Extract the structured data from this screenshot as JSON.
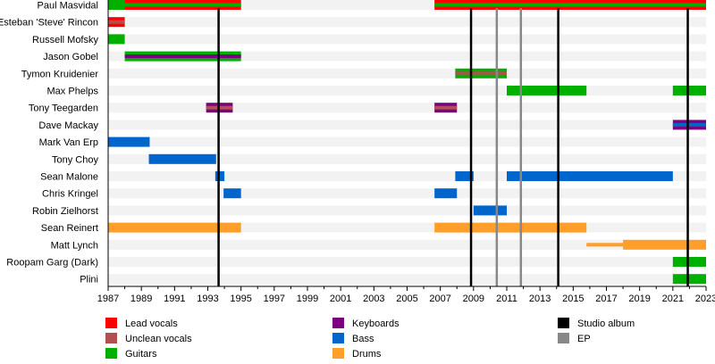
{
  "chart_data": {
    "type": "timeline",
    "title": "",
    "xlabel": "",
    "ylabel": "",
    "xlim": [
      1987,
      2023
    ],
    "x_ticks": [
      1987,
      1989,
      1991,
      1993,
      1995,
      1997,
      1999,
      2001,
      2003,
      2005,
      2007,
      2009,
      2011,
      2013,
      2015,
      2017,
      2019,
      2021,
      2023
    ],
    "minor_tick_step": 1,
    "grid": false,
    "row_striping": true,
    "legend_position": "bottom",
    "roles": {
      "lead_vocals": {
        "label": "Lead vocals",
        "color": "#ff0000"
      },
      "unclean_vocals": {
        "label": "Unclean vocals",
        "color": "#b25050"
      },
      "guitars": {
        "label": "Guitars",
        "color": "#00b000"
      },
      "keyboards": {
        "label": "Keyboards",
        "color": "#7a0080"
      },
      "bass": {
        "label": "Bass",
        "color": "#0066cc"
      },
      "drums": {
        "label": "Drums",
        "color": "#ff9e2a"
      },
      "studio_album": {
        "label": "Studio album",
        "color": "#000000"
      },
      "ep": {
        "label": "EP",
        "color": "#888888"
      }
    },
    "legend": [
      {
        "key": "lead_vocals",
        "label": "Lead vocals",
        "color": "#ff0000"
      },
      {
        "key": "unclean_vocals",
        "label": "Unclean vocals",
        "color": "#b25050"
      },
      {
        "key": "guitars",
        "label": "Guitars",
        "color": "#00b000"
      },
      {
        "key": "keyboards",
        "label": "Keyboards",
        "color": "#7a0080"
      },
      {
        "key": "bass",
        "label": "Bass",
        "color": "#0066cc"
      },
      {
        "key": "drums",
        "label": "Drums",
        "color": "#ff9e2a"
      },
      {
        "key": "studio_album",
        "label": "Studio album",
        "color": "#000000"
      },
      {
        "key": "ep",
        "label": "EP",
        "color": "#888888"
      }
    ],
    "releases": [
      {
        "type": "studio_album",
        "year": 1993.65
      },
      {
        "type": "studio_album",
        "year": 2008.85
      },
      {
        "type": "ep",
        "year": 2010.4
      },
      {
        "type": "ep",
        "year": 2011.85
      },
      {
        "type": "studio_album",
        "year": 2014.1
      },
      {
        "type": "studio_album",
        "year": 2021.9
      }
    ],
    "members": [
      {
        "name": "Paul Masvidal",
        "bars": [
          {
            "start": 1987,
            "end": 1988,
            "role": "guitars"
          },
          {
            "start": 1988,
            "end": 1995,
            "role": "lead_vocals",
            "stripe": "guitars"
          },
          {
            "start": 2006.65,
            "end": 2023,
            "role": "lead_vocals",
            "stripe": "guitars"
          }
        ]
      },
      {
        "name": "Esteban 'Steve' Rincon",
        "bars": [
          {
            "start": 1987,
            "end": 1988,
            "role": "lead_vocals",
            "stripe": "unclean_vocals"
          }
        ]
      },
      {
        "name": "Russell Mofsky",
        "bars": [
          {
            "start": 1987,
            "end": 1988,
            "role": "guitars"
          }
        ]
      },
      {
        "name": "Jason Gobel",
        "bars": [
          {
            "start": 1988,
            "end": 1995,
            "role": "guitars",
            "stripe": "keyboards"
          }
        ]
      },
      {
        "name": "Tymon Kruidenier",
        "bars": [
          {
            "start": 2007.9,
            "end": 2011,
            "role": "guitars",
            "stripe": "unclean_vocals"
          }
        ]
      },
      {
        "name": "Max Phelps",
        "bars": [
          {
            "start": 2011,
            "end": 2015.8,
            "role": "guitars"
          },
          {
            "start": 2021,
            "end": 2023,
            "role": "guitars"
          }
        ]
      },
      {
        "name": "Tony Teegarden",
        "bars": [
          {
            "start": 1992.9,
            "end": 1994.5,
            "role": "keyboards",
            "stripe": "unclean_vocals"
          },
          {
            "start": 2006.65,
            "end": 2008,
            "role": "keyboards",
            "stripe": "unclean_vocals"
          }
        ]
      },
      {
        "name": "Dave Mackay",
        "bars": [
          {
            "start": 2021,
            "end": 2023,
            "role": "keyboards",
            "stripe": "bass"
          }
        ]
      },
      {
        "name": "Mark Van Erp",
        "bars": [
          {
            "start": 1987,
            "end": 1989.5,
            "role": "bass"
          }
        ]
      },
      {
        "name": "Tony Choy",
        "bars": [
          {
            "start": 1989.45,
            "end": 1993.5,
            "role": "bass"
          }
        ]
      },
      {
        "name": "Sean Malone",
        "bars": [
          {
            "start": 1993.45,
            "end": 1994,
            "role": "bass"
          },
          {
            "start": 2007.9,
            "end": 2009,
            "role": "bass"
          },
          {
            "start": 2011,
            "end": 2021,
            "role": "bass"
          }
        ]
      },
      {
        "name": "Chris Kringel",
        "bars": [
          {
            "start": 1993.95,
            "end": 1995,
            "role": "bass"
          },
          {
            "start": 2006.65,
            "end": 2008,
            "role": "bass"
          }
        ]
      },
      {
        "name": "Robin Zielhorst",
        "bars": [
          {
            "start": 2009,
            "end": 2011,
            "role": "bass"
          }
        ]
      },
      {
        "name": "Sean Reinert",
        "bars": [
          {
            "start": 1987,
            "end": 1995,
            "role": "drums"
          },
          {
            "start": 2006.65,
            "end": 2015.8,
            "role": "drums"
          }
        ]
      },
      {
        "name": "Matt Lynch",
        "bars": [
          {
            "start": 2015.8,
            "end": 2018,
            "role": "drums",
            "thin": true
          },
          {
            "start": 2018,
            "end": 2023,
            "role": "drums"
          }
        ]
      },
      {
        "name": "Roopam Garg (Dark)",
        "bars": [
          {
            "start": 2021,
            "end": 2023,
            "role": "guitars"
          }
        ]
      },
      {
        "name": "Plini",
        "bars": [
          {
            "start": 2021,
            "end": 2023,
            "role": "guitars"
          }
        ]
      }
    ]
  }
}
